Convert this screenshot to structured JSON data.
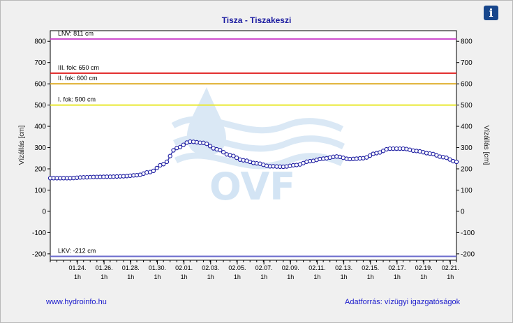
{
  "chart_data": {
    "type": "line",
    "title": "Tisza - Tiszakeszi",
    "ylabel": "Vízállás [cm]",
    "ylabel_right": "Vízállás [cm]",
    "ylim": [
      -230,
      850
    ],
    "yticks": [
      -200,
      -100,
      0,
      100,
      200,
      300,
      400,
      500,
      600,
      700,
      800
    ],
    "x_start_date": "2024-01-22",
    "x_end_date": "2024-02-21",
    "xticks": [
      {
        "date": "01.24.",
        "time": "1h"
      },
      {
        "date": "01.26.",
        "time": "1h"
      },
      {
        "date": "01.28.",
        "time": "1h"
      },
      {
        "date": "01.30.",
        "time": "1h"
      },
      {
        "date": "02.01.",
        "time": "1h"
      },
      {
        "date": "02.03.",
        "time": "1h"
      },
      {
        "date": "02.05.",
        "time": "1h"
      },
      {
        "date": "02.07.",
        "time": "1h"
      },
      {
        "date": "02.09.",
        "time": "1h"
      },
      {
        "date": "02.11.",
        "time": "1h"
      },
      {
        "date": "02.13.",
        "time": "1h"
      },
      {
        "date": "02.15.",
        "time": "1h"
      },
      {
        "date": "02.17.",
        "time": "1h"
      },
      {
        "date": "02.19.",
        "time": "1h"
      },
      {
        "date": "02.21.",
        "time": "1h"
      }
    ],
    "thresholds": [
      {
        "label": "LNV: 811 cm",
        "value": 811,
        "color": "#cc44cc"
      },
      {
        "label": "III. fok: 650 cm",
        "value": 650,
        "color": "#e02020"
      },
      {
        "label": "II. fok: 600 cm",
        "value": 600,
        "color": "#e0b030"
      },
      {
        "label": "I. fok: 500 cm",
        "value": 500,
        "color": "#e8e830"
      },
      {
        "label": "LKV: -212 cm",
        "value": -212,
        "color": "#6a6acc"
      }
    ],
    "series": [
      {
        "color": "#1a1aa0",
        "x": [
          "2024-01-22",
          "2024-01-23",
          "2024-01-24",
          "2024-01-25",
          "2024-01-26",
          "2024-01-27",
          "2024-01-28",
          "2024-01-29",
          "2024-01-30",
          "2024-01-31",
          "2024-02-01",
          "2024-02-02",
          "2024-02-03",
          "2024-02-04",
          "2024-02-05",
          "2024-02-06",
          "2024-02-07",
          "2024-02-08",
          "2024-02-09",
          "2024-02-10",
          "2024-02-11",
          "2024-02-12",
          "2024-02-13",
          "2024-02-14",
          "2024-02-15",
          "2024-02-16",
          "2024-02-17",
          "2024-02-18",
          "2024-02-19",
          "2024-02-20",
          "2024-02-21"
        ],
        "values": [
          156,
          156,
          160,
          162,
          163,
          165,
          170,
          185,
          222,
          298,
          328,
          322,
          292,
          264,
          240,
          226,
          212,
          210,
          218,
          236,
          248,
          258,
          246,
          250,
          274,
          295,
          295,
          284,
          272,
          255,
          233
        ]
      }
    ]
  },
  "footer": {
    "left": "www.hydroinfo.hu",
    "right": "Adatforrás: vízügyi igazgatóságok"
  },
  "watermark": {
    "text": "OVF"
  },
  "info_icon": {
    "glyph": "i"
  }
}
